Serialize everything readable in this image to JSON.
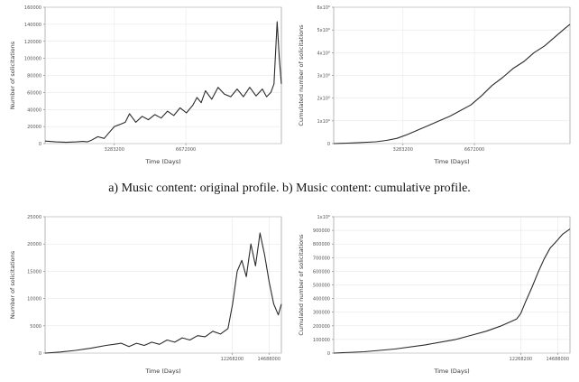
{
  "caption": "a) Music content: original profile. b) Music content: cumulative profile.",
  "chart_data": [
    {
      "id": "music-original",
      "type": "line",
      "xlabel": "Time (Days)",
      "ylabel": "Number of solicitations",
      "xlim": [
        0,
        11200000
      ],
      "ylim": [
        0,
        160000
      ],
      "yticks": [
        0,
        20000,
        40000,
        60000,
        80000,
        100000,
        120000,
        140000,
        160000
      ],
      "ytick_labels": [
        "0",
        "20000",
        "40000",
        "60000",
        "80000",
        "100000",
        "120000",
        "140000",
        "160000"
      ],
      "xticks": [
        3283200,
        6672000
      ],
      "xtick_labels": [
        "3283200",
        "6672000"
      ],
      "grid": true,
      "color": "#2b2b2b",
      "x": [
        0,
        500000,
        1000000,
        1500000,
        1800000,
        2000000,
        2200000,
        2500000,
        2800000,
        3000000,
        3283200,
        3500000,
        3800000,
        4000000,
        4300000,
        4600000,
        4900000,
        5200000,
        5500000,
        5800000,
        6100000,
        6400000,
        6700000,
        7000000,
        7200000,
        7400000,
        7600000,
        7900000,
        8200000,
        8500000,
        8800000,
        9100000,
        9400000,
        9700000,
        10000000,
        10300000,
        10500000,
        10700000,
        10850000,
        11000000,
        11100000,
        11200000
      ],
      "y": [
        3000,
        2000,
        1500,
        2000,
        2500,
        2000,
        4000,
        8000,
        6000,
        12000,
        20000,
        22000,
        25000,
        35000,
        25000,
        32000,
        28000,
        34000,
        30000,
        38000,
        33000,
        42000,
        36000,
        45000,
        54000,
        48000,
        62000,
        52000,
        66000,
        58000,
        55000,
        64000,
        55000,
        66000,
        56000,
        64000,
        55000,
        60000,
        70000,
        143000,
        100000,
        70000
      ]
    },
    {
      "id": "music-cumulative",
      "type": "line",
      "xlabel": "Time (Days)",
      "ylabel": "Cumulated number of solicitations",
      "xlim": [
        0,
        11200000
      ],
      "ylim": [
        0,
        6000000
      ],
      "yticks": [
        0,
        1000000,
        2000000,
        3000000,
        4000000,
        5000000,
        6000000
      ],
      "ytick_labels": [
        "0",
        "1x10⁶",
        "2x10⁶",
        "3x10⁶",
        "4x10⁶",
        "5x10⁶",
        "6x10⁶"
      ],
      "xticks": [
        3283200,
        6672000
      ],
      "xtick_labels": [
        "3283200",
        "6672000"
      ],
      "grid": true,
      "color": "#2b2b2b",
      "x": [
        0,
        1000000,
        2000000,
        2500000,
        3000000,
        3500000,
        4000000,
        4500000,
        5000000,
        5500000,
        6000000,
        6500000,
        7000000,
        7500000,
        8000000,
        8500000,
        9000000,
        9500000,
        10000000,
        10500000,
        11000000,
        11200000
      ],
      "y": [
        0,
        30000,
        80000,
        140000,
        230000,
        400000,
        600000,
        800000,
        1000000,
        1200000,
        1450000,
        1700000,
        2100000,
        2550000,
        2900000,
        3300000,
        3600000,
        4000000,
        4300000,
        4700000,
        5100000,
        5250000
      ]
    },
    {
      "id": "bottom-original",
      "type": "line",
      "xlabel": "Time (Days)",
      "ylabel": "Number of solicitations",
      "xlim": [
        0,
        15500000
      ],
      "ylim": [
        0,
        25000
      ],
      "yticks": [
        0,
        5000,
        10000,
        15000,
        20000,
        25000
      ],
      "ytick_labels": [
        "0",
        "5000",
        "10000",
        "15000",
        "20000",
        "25000"
      ],
      "xticks": [
        12268200,
        14688000
      ],
      "xtick_labels": [
        "12268200",
        "14688000"
      ],
      "grid": true,
      "color": "#2b2b2b",
      "x": [
        0,
        1000000,
        2000000,
        3000000,
        4000000,
        5000000,
        5500000,
        6000000,
        6500000,
        7000000,
        7500000,
        8000000,
        8500000,
        9000000,
        9500000,
        10000000,
        10500000,
        11000000,
        11500000,
        12000000,
        12300000,
        12600000,
        12900000,
        13200000,
        13500000,
        13800000,
        14100000,
        14400000,
        14700000,
        15000000,
        15300000,
        15500000
      ],
      "y": [
        0,
        200,
        500,
        900,
        1400,
        1800,
        1200,
        1800,
        1400,
        2000,
        1600,
        2400,
        2000,
        2800,
        2400,
        3200,
        3000,
        4000,
        3500,
        4500,
        9000,
        15000,
        17000,
        14000,
        20000,
        16000,
        22000,
        18000,
        13000,
        9000,
        7000,
        9000
      ]
    },
    {
      "id": "bottom-cumulative",
      "type": "line",
      "xlabel": "Time (Days)",
      "ylabel": "Cumulated number of solicitations",
      "xlim": [
        0,
        15500000
      ],
      "ylim": [
        0,
        1000000
      ],
      "yticks": [
        0,
        100000,
        200000,
        300000,
        400000,
        500000,
        600000,
        700000,
        800000,
        900000,
        1000000
      ],
      "ytick_labels": [
        "0",
        "100000",
        "200000",
        "300000",
        "400000",
        "500000",
        "600000",
        "700000",
        "800000",
        "900000",
        "1x10⁶"
      ],
      "xticks": [
        12268200,
        14688000
      ],
      "xtick_labels": [
        "12268200",
        "14688000"
      ],
      "grid": true,
      "color": "#2b2b2b",
      "x": [
        0,
        2000000,
        4000000,
        6000000,
        8000000,
        9000000,
        10000000,
        11000000,
        11500000,
        12000000,
        12268200,
        12600000,
        13000000,
        13400000,
        13800000,
        14200000,
        14688000,
        15000000,
        15500000
      ],
      "y": [
        0,
        10000,
        30000,
        60000,
        100000,
        130000,
        160000,
        200000,
        225000,
        250000,
        290000,
        380000,
        480000,
        590000,
        690000,
        770000,
        830000,
        870000,
        910000
      ]
    }
  ]
}
